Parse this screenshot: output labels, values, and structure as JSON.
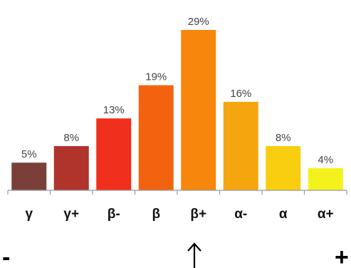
{
  "chart_data": {
    "type": "bar",
    "categories": [
      "γ",
      "γ+",
      "β-",
      "β",
      "β+",
      "α-",
      "α",
      "α+"
    ],
    "values": [
      5,
      8,
      13,
      19,
      29,
      16,
      8,
      4
    ],
    "value_labels": [
      "5%",
      "8%",
      "13%",
      "19%",
      "29%",
      "16%",
      "8%",
      "4%"
    ],
    "colors": [
      "#7b3f3a",
      "#b0332c",
      "#f0301c",
      "#f3630f",
      "#f7860c",
      "#f5a60f",
      "#f9ce10",
      "#f3f21d"
    ],
    "ylim": [
      0,
      29
    ],
    "grid": false,
    "legend": "none",
    "title": "",
    "xlabel": "",
    "ylabel": ""
  },
  "scale": {
    "minus_label": "-",
    "plus_label": "+",
    "marker": "arrow-up-icon"
  }
}
